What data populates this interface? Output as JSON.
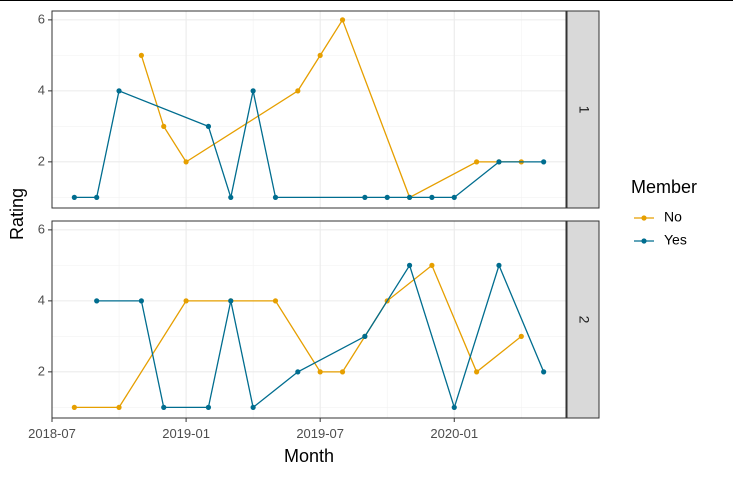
{
  "chart_data": {
    "type": "line",
    "xlabel": "Month",
    "ylabel": "Rating",
    "x_ticks": [
      "2018-07",
      "2019-01",
      "2019-07",
      "2020-01"
    ],
    "y_ticks": [
      2,
      4,
      6
    ],
    "xlim": [
      "2018-07-01",
      "2020-06-01"
    ],
    "ylim": [
      0.7,
      6.25
    ],
    "legend": {
      "title": "Member",
      "position": "right"
    },
    "grid": true,
    "facets": [
      {
        "label": "1",
        "series": [
          {
            "name": "No",
            "color": "#E69F00",
            "points": [
              [
                "2018-11-01",
                5
              ],
              [
                "2018-12-01",
                3
              ],
              [
                "2019-01-01",
                2
              ],
              [
                "2019-06-01",
                4
              ],
              [
                "2019-07-01",
                5
              ],
              [
                "2019-08-01",
                6
              ],
              [
                "2019-11-01",
                1
              ],
              [
                "2020-02-01",
                2
              ],
              [
                "2020-03-01",
                2
              ],
              [
                "2020-04-01",
                2
              ]
            ]
          },
          {
            "name": "Yes",
            "color": "#006D8F",
            "points": [
              [
                "2018-08-01",
                1
              ],
              [
                "2018-09-01",
                1
              ],
              [
                "2018-10-01",
                4
              ],
              [
                "2019-02-01",
                3
              ],
              [
                "2019-03-01",
                1
              ],
              [
                "2019-04-01",
                4
              ],
              [
                "2019-05-01",
                1
              ],
              [
                "2019-09-01",
                1
              ],
              [
                "2019-10-01",
                1
              ],
              [
                "2019-11-01",
                1
              ],
              [
                "2019-12-01",
                1
              ],
              [
                "2020-01-01",
                1
              ],
              [
                "2020-03-01",
                2
              ],
              [
                "2020-05-01",
                2
              ]
            ]
          }
        ]
      },
      {
        "label": "2",
        "series": [
          {
            "name": "No",
            "color": "#E69F00",
            "points": [
              [
                "2018-08-01",
                1
              ],
              [
                "2018-10-01",
                1
              ],
              [
                "2019-01-01",
                4
              ],
              [
                "2019-03-01",
                4
              ],
              [
                "2019-05-01",
                4
              ],
              [
                "2019-07-01",
                2
              ],
              [
                "2019-08-01",
                2
              ],
              [
                "2019-09-01",
                3
              ],
              [
                "2019-10-01",
                4
              ],
              [
                "2019-12-01",
                5
              ],
              [
                "2020-02-01",
                2
              ],
              [
                "2020-04-01",
                3
              ]
            ]
          },
          {
            "name": "Yes",
            "color": "#006D8F",
            "points": [
              [
                "2018-09-01",
                4
              ],
              [
                "2018-11-01",
                4
              ],
              [
                "2018-12-01",
                1
              ],
              [
                "2019-02-01",
                1
              ],
              [
                "2019-03-01",
                4
              ],
              [
                "2019-04-01",
                1
              ],
              [
                "2019-06-01",
                2
              ],
              [
                "2019-09-01",
                3
              ],
              [
                "2019-11-01",
                5
              ],
              [
                "2020-01-01",
                1
              ],
              [
                "2020-03-01",
                5
              ],
              [
                "2020-05-01",
                2
              ]
            ]
          }
        ]
      }
    ]
  }
}
